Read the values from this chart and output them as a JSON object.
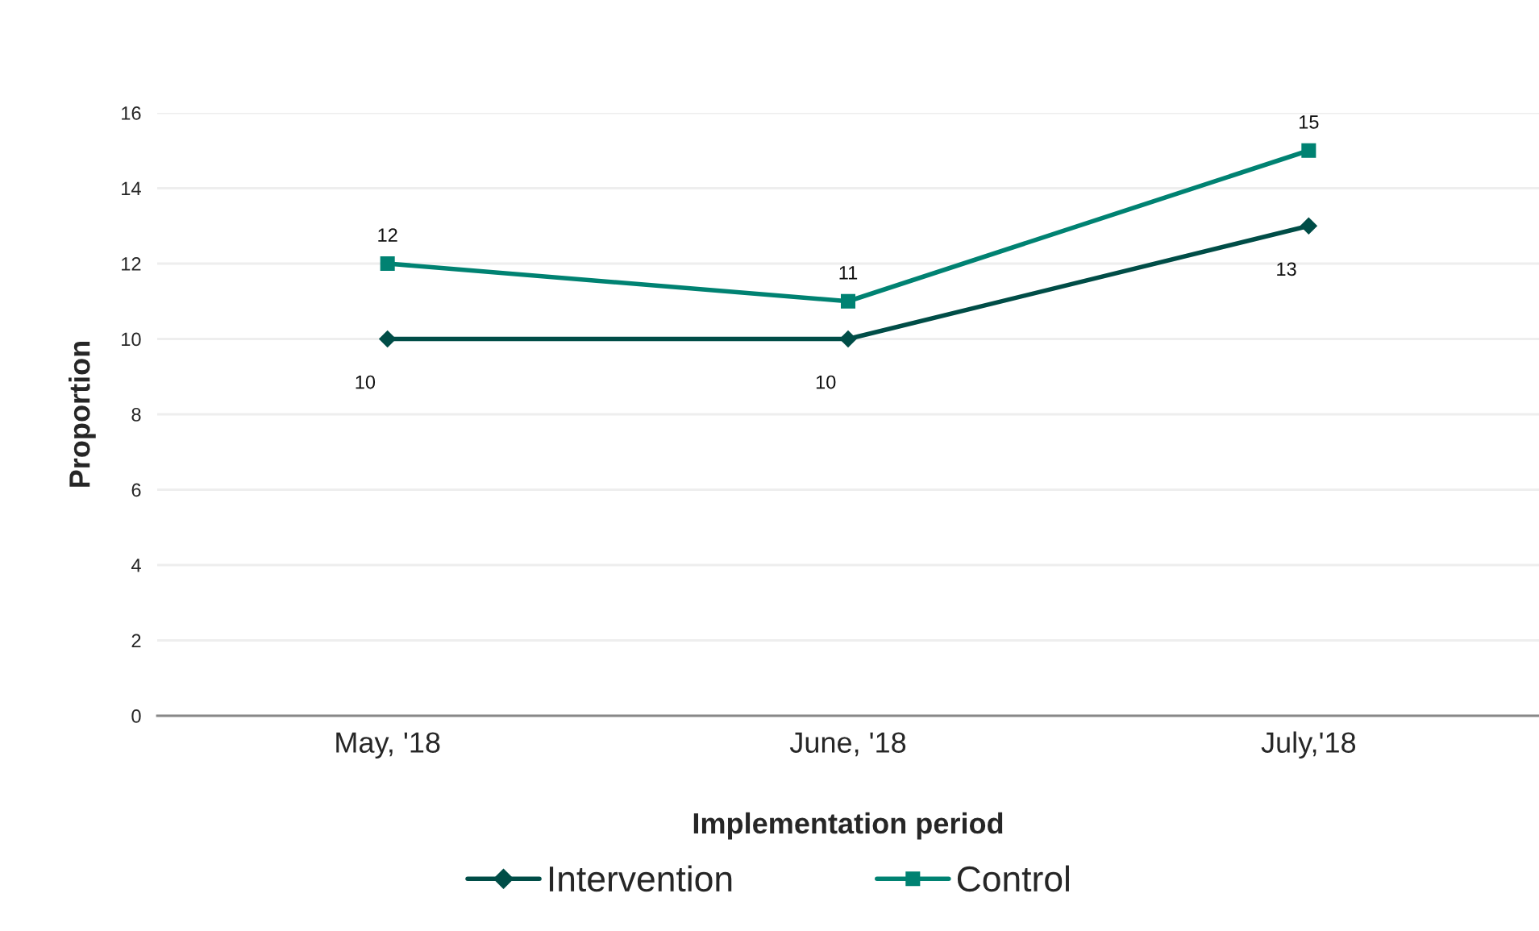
{
  "chart_data": {
    "type": "line",
    "xlabel": "Implementation period",
    "ylabel": "Proportion",
    "categories": [
      "May, '18",
      "June, '18",
      "July,'18"
    ],
    "series": [
      {
        "name": "Intervention",
        "color": "#004d47",
        "marker": "diamond",
        "values": [
          10,
          10,
          13
        ]
      },
      {
        "name": "Control",
        "color": "#008272",
        "marker": "square",
        "values": [
          12,
          11,
          15
        ]
      }
    ],
    "ylim": [
      0,
      16
    ],
    "yticks": [
      0,
      2,
      4,
      6,
      8,
      10,
      12,
      14,
      16
    ],
    "grid": "y",
    "legend": "bottom",
    "data_labels": true,
    "line_style": "solid"
  }
}
